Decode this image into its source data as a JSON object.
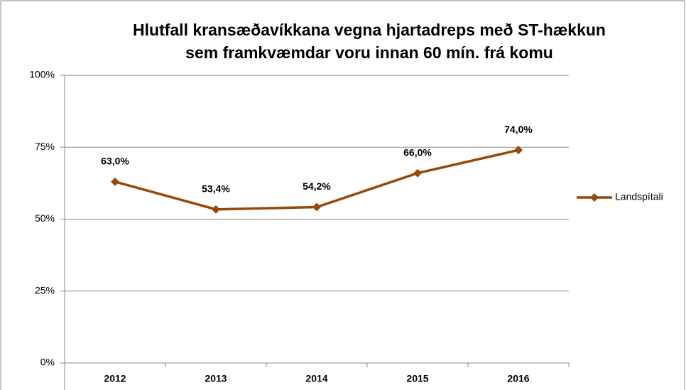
{
  "chart_data": {
    "type": "line",
    "title": [
      "Hlutfall kransæðavíkkana vegna hjartadreps með ST-hækkun",
      "sem framkvæmdar voru innan 60 mín. frá komu"
    ],
    "categories": [
      "2012",
      "2013",
      "2014",
      "2015",
      "2016"
    ],
    "series": [
      {
        "name": "Landspítali",
        "color": "#984807",
        "values": [
          63.0,
          53.4,
          54.2,
          66.0,
          74.0
        ],
        "value_labels": [
          "63,0%",
          "53,4%",
          "54,2%",
          "66,0%",
          "74,0%"
        ]
      }
    ],
    "ylim": [
      0,
      100
    ],
    "yticks": [
      {
        "value": 0,
        "label": "0%"
      },
      {
        "value": 25,
        "label": "25%"
      },
      {
        "value": 50,
        "label": "50%"
      },
      {
        "value": 75,
        "label": "75%"
      },
      {
        "value": 100,
        "label": "100%"
      }
    ],
    "grid": true,
    "legend": "right"
  }
}
